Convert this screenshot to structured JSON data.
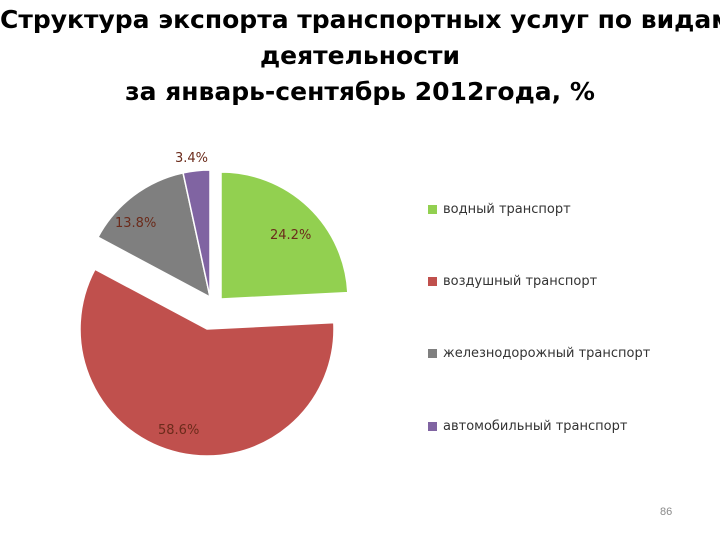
{
  "title": {
    "line1": "Структура  экспорта транспортных услуг по видам",
    "line2": "деятельности",
    "line3": "за январь-сентябрь 2012года, %"
  },
  "chart_data": {
    "type": "pie",
    "title": "Структура  экспорта транспортных услуг по видам деятельности за январь-сентябрь 2012года, %",
    "categories": [
      "водный транспорт",
      "воздушный транспорт",
      "железнодорожный транспорт",
      "автомобильный транспорт"
    ],
    "values": [
      24.2,
      58.6,
      13.8,
      3.4
    ],
    "labels": [
      "24.2%",
      "58.6%",
      "13.8%",
      "3.4%"
    ],
    "colors": [
      "#92d050",
      "#c0504d",
      "#7f7f7f",
      "#8064a2"
    ],
    "exploded": true,
    "legend_position": "right"
  },
  "legend": {
    "items": [
      {
        "label": "водный транспорт",
        "color": "#92d050"
      },
      {
        "label": "воздушный транспорт",
        "color": "#c0504d"
      },
      {
        "label": "железнодорожный транспорт",
        "color": "#7f7f7f"
      },
      {
        "label": "автомобильный транспорт",
        "color": "#8064a2"
      }
    ]
  },
  "page_number": "86"
}
